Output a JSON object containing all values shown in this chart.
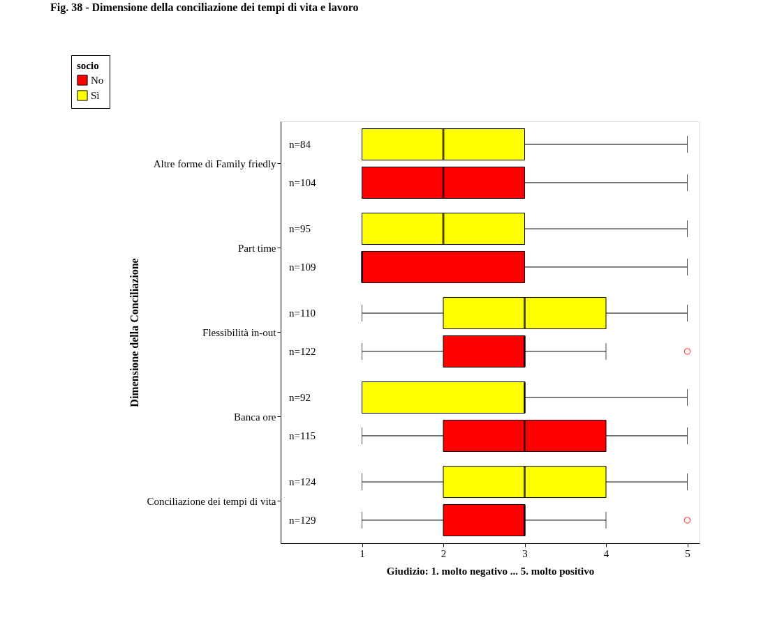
{
  "chart_data": {
    "type": "box",
    "title": "Fig. 38 - Dimensione della conciliazione dei tempi di vita e lavoro",
    "orientation": "horizontal",
    "categories": [
      "Altre forme di Family friedly",
      "Part time",
      "Flessibilità in-out",
      "Banca ore",
      "Conciliazione dei tempi di vita"
    ],
    "xlabel": "Giudizio: 1. molto negativo ... 5. molto positivo",
    "ylabel": "Dimensione della Conciliazione",
    "legend_title": "socio",
    "xlim": [
      0,
      5.15
    ],
    "xticks": [
      1,
      2,
      3,
      4,
      5
    ],
    "grid": false,
    "legend": "top left",
    "series": [
      {
        "name": "No",
        "color": "#ff0000",
        "value_labels": [
          "n=104",
          "n=109",
          "n=122",
          "n=115",
          "n=129"
        ],
        "boxes": [
          {
            "low": 1,
            "q1": 1,
            "median": 2,
            "q3": 3,
            "high": 5
          },
          {
            "low": 1,
            "q1": 1,
            "median": 1,
            "q3": 3,
            "high": 5
          },
          {
            "low": 1,
            "q1": 2,
            "median": 3,
            "q3": 3,
            "high": 4,
            "outliers": [
              5
            ]
          },
          {
            "low": 1,
            "q1": 2,
            "median": 3,
            "q3": 4,
            "high": 5
          },
          {
            "low": 1,
            "q1": 2,
            "median": 3,
            "q3": 3,
            "high": 4,
            "outliers": [
              5
            ]
          }
        ]
      },
      {
        "name": "Sì",
        "color": "#ffff00",
        "value_labels": [
          "n=84",
          "n=95",
          "n=110",
          "n=92",
          "n=124"
        ],
        "boxes": [
          {
            "low": 1,
            "q1": 1,
            "median": 2,
            "q3": 3,
            "high": 5
          },
          {
            "low": 1,
            "q1": 1,
            "median": 2,
            "q3": 3,
            "high": 5
          },
          {
            "low": 1,
            "q1": 2,
            "median": 3,
            "q3": 4,
            "high": 5
          },
          {
            "low": 1,
            "q1": 1,
            "median": 3,
            "q3": 3,
            "high": 5
          },
          {
            "low": 1,
            "q1": 2,
            "median": 3,
            "q3": 4,
            "high": 5
          }
        ]
      }
    ]
  }
}
